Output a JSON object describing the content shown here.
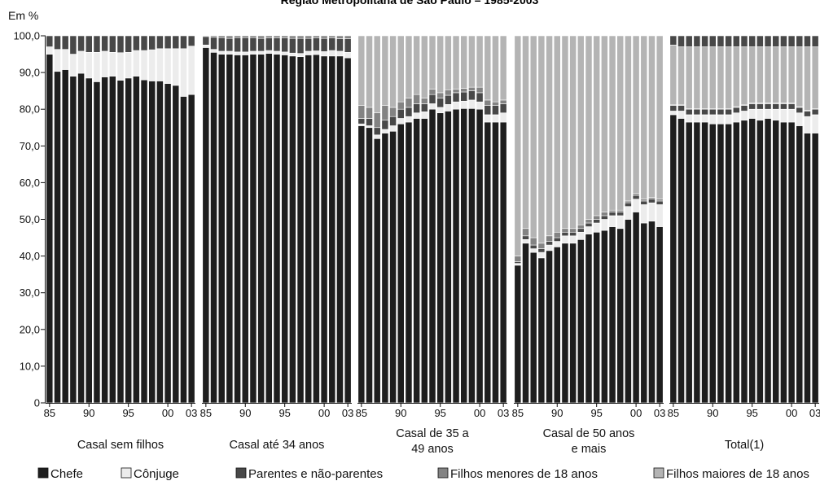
{
  "subtitle": "Região Metropolitana de São Paulo – 1985-2003",
  "colors": {
    "chefe": "#1e1e1e",
    "conjuge": "#ececec",
    "parentes": "#484848",
    "filhos_menores": "#838383",
    "filhos_maiores": "#b4b4b4",
    "border": "#ffffff"
  },
  "chart_data": {
    "type": "bar",
    "stacked": true,
    "ylabel": "Em %",
    "ylim": [
      0,
      100
    ],
    "yticks": [
      0,
      10,
      20,
      30,
      40,
      50,
      60,
      70,
      80,
      90,
      100
    ],
    "ytick_labels": [
      "0",
      "10,0",
      "20,0",
      "30,0",
      "40,0",
      "50,0",
      "60,0",
      "70,0",
      "80,0",
      "90,0",
      "100,0"
    ],
    "years": [
      1985,
      1986,
      1987,
      1988,
      1989,
      1990,
      1991,
      1992,
      1993,
      1994,
      1995,
      1996,
      1997,
      1998,
      1999,
      2000,
      2001,
      2002,
      2003
    ],
    "xtick_labels": [
      "85",
      "90",
      "95",
      "00",
      "03"
    ],
    "legend": [
      "Chefe",
      "Cônjuge",
      "Parentes e não-parentes",
      "Filhos menores de 18 anos",
      "Filhos maiores de 18 anos"
    ],
    "legend_position": "bottom",
    "panels": [
      {
        "title": [
          "Casal sem filhos"
        ],
        "chefe": [
          95.0,
          90.3,
          90.8,
          89.0,
          89.8,
          88.5,
          87.5,
          88.8,
          89.0,
          87.9,
          88.5,
          89.0,
          88.0,
          87.7,
          87.7,
          87.0,
          86.5,
          83.5,
          84.0
        ],
        "conjuge": [
          2.0,
          6.0,
          5.5,
          6.0,
          6.0,
          7.0,
          8.0,
          7.0,
          6.5,
          7.5,
          7.0,
          7.0,
          8.0,
          8.5,
          8.8,
          9.5,
          10.0,
          13.0,
          13.2
        ],
        "parentes": [
          3.0,
          3.7,
          3.7,
          5.0,
          4.2,
          4.5,
          4.5,
          4.2,
          4.5,
          4.6,
          4.5,
          4.0,
          4.0,
          3.8,
          3.5,
          3.5,
          3.5,
          3.5,
          2.8
        ],
        "filhos_menores": [
          0,
          0,
          0,
          0,
          0,
          0,
          0,
          0,
          0,
          0,
          0,
          0,
          0,
          0,
          0,
          0,
          0,
          0,
          0
        ],
        "filhos_maiores": [
          0,
          0,
          0,
          0,
          0,
          0,
          0,
          0,
          0,
          0,
          0,
          0,
          0,
          0,
          0,
          0,
          0,
          0,
          0
        ]
      },
      {
        "title": [
          "Casal até 34 anos"
        ],
        "chefe": [
          96.8,
          95.5,
          95.0,
          95.0,
          94.8,
          94.8,
          95.0,
          95.0,
          95.2,
          95.0,
          94.8,
          94.5,
          94.3,
          94.8,
          94.9,
          94.5,
          94.5,
          94.5,
          94.0
        ],
        "conjuge": [
          0.7,
          0.8,
          0.8,
          0.8,
          0.8,
          0.8,
          0.8,
          0.8,
          0.8,
          0.8,
          0.8,
          0.8,
          0.9,
          1.0,
          1.0,
          1.2,
          1.5,
          1.3,
          1.5
        ],
        "parentes": [
          2.3,
          3.3,
          3.7,
          3.5,
          3.9,
          3.9,
          3.7,
          3.5,
          3.4,
          3.6,
          3.8,
          4.0,
          4.1,
          3.5,
          3.5,
          3.6,
          3.4,
          3.4,
          3.7
        ],
        "filhos_menores": [
          0.2,
          0.4,
          0.5,
          0.7,
          0.5,
          0.5,
          0.5,
          0.7,
          0.6,
          0.6,
          0.6,
          0.7,
          0.7,
          0.7,
          0.6,
          0.7,
          0.6,
          0.8,
          0.8
        ],
        "filhos_maiores": [
          0,
          0,
          0,
          0,
          0,
          0,
          0,
          0,
          0,
          0,
          0,
          0,
          0,
          0,
          0,
          0,
          0,
          0,
          0
        ]
      },
      {
        "title": [
          "Casal de 35 a",
          "49 anos"
        ],
        "chefe": [
          75.5,
          75.0,
          72.0,
          73.5,
          74.0,
          76.0,
          76.5,
          77.5,
          77.5,
          80.0,
          79.0,
          79.5,
          80.0,
          80.2,
          80.2,
          80.0,
          76.5,
          76.5,
          76.5
        ],
        "conjuge": [
          0.5,
          0.5,
          1.0,
          1.0,
          1.5,
          1.5,
          1.5,
          1.5,
          1.8,
          1.5,
          1.5,
          1.8,
          2.0,
          2.0,
          2.3,
          2.0,
          2.0,
          2.0,
          2.5
        ],
        "parentes": [
          1.5,
          2.0,
          2.0,
          2.5,
          2.5,
          2.5,
          2.5,
          2.5,
          2.2,
          2.5,
          2.5,
          2.5,
          2.5,
          2.5,
          2.5,
          2.5,
          2.5,
          2.5,
          2.5
        ],
        "filhos_menores": [
          3.5,
          3.0,
          4.0,
          4.0,
          2.5,
          2.0,
          2.5,
          2.5,
          1.5,
          1.5,
          1.5,
          1.5,
          1.0,
          1.0,
          1.0,
          1.5,
          1.5,
          1.0,
          1.0
        ],
        "filhos_maiores": [
          19.0,
          19.5,
          21.0,
          19.0,
          19.5,
          18.0,
          17.0,
          16.0,
          17.0,
          14.5,
          15.5,
          14.7,
          14.5,
          14.3,
          14.0,
          14.0,
          17.5,
          18.0,
          17.5
        ]
      },
      {
        "title": [
          "Casal de 50 anos",
          "e mais"
        ],
        "chefe": [
          37.5,
          43.5,
          41.0,
          39.5,
          41.5,
          42.5,
          43.5,
          43.5,
          44.5,
          46.0,
          46.5,
          47.0,
          48.0,
          47.5,
          50.0,
          52.0,
          49.0,
          49.5,
          48.0
        ],
        "conjuge": [
          0.5,
          1.0,
          1.0,
          1.5,
          1.5,
          1.5,
          2.0,
          2.0,
          2.0,
          2.0,
          2.5,
          3.0,
          3.0,
          3.5,
          3.5,
          3.5,
          5.0,
          5.0,
          6.0
        ],
        "parentes": [
          0.5,
          1.0,
          1.0,
          1.0,
          1.0,
          1.0,
          1.0,
          1.0,
          1.0,
          1.0,
          1.0,
          1.0,
          1.0,
          1.0,
          1.0,
          1.0,
          1.0,
          1.0,
          1.0
        ],
        "filhos_menores": [
          1.5,
          2.0,
          2.0,
          1.5,
          1.5,
          1.5,
          1.0,
          1.0,
          1.0,
          1.0,
          1.0,
          1.0,
          0.5,
          0.5,
          0.5,
          0.5,
          0.5,
          0.5,
          0.5
        ],
        "filhos_maiores": [
          60.0,
          52.5,
          55.0,
          56.5,
          54.5,
          53.5,
          52.5,
          52.5,
          51.5,
          50.0,
          49.0,
          48.0,
          47.5,
          47.5,
          45.0,
          43.0,
          44.5,
          44.0,
          44.5
        ]
      },
      {
        "title": [
          "Total(1)"
        ],
        "chefe": [
          78.5,
          77.5,
          76.5,
          76.5,
          76.5,
          76.0,
          76.0,
          76.0,
          76.5,
          77.0,
          77.5,
          77.0,
          77.5,
          77.0,
          76.5,
          76.5,
          75.5,
          73.5,
          73.5
        ],
        "conjuge": [
          1.0,
          2.0,
          2.0,
          2.0,
          2.0,
          2.5,
          2.5,
          2.5,
          2.5,
          2.5,
          2.5,
          3.0,
          2.5,
          3.0,
          3.5,
          3.5,
          3.5,
          4.5,
          5.0
        ],
        "parentes": [
          1.5,
          1.5,
          1.5,
          1.5,
          1.5,
          1.5,
          1.5,
          1.5,
          1.5,
          1.5,
          1.5,
          1.5,
          1.5,
          1.5,
          1.5,
          1.5,
          1.5,
          1.5,
          1.5
        ],
        "filhos_menores": [
          0.2,
          0.2,
          0.2,
          0.2,
          0.2,
          0.2,
          0.2,
          0.2,
          0.2,
          0.2,
          0.2,
          0.2,
          0.2,
          0.2,
          0.2,
          0.2,
          0.2,
          0.2,
          0.2
        ],
        "filhos_maiores": [
          16.3,
          15.8,
          16.8,
          16.8,
          16.8,
          16.8,
          16.8,
          16.8,
          16.3,
          15.8,
          15.3,
          15.3,
          15.3,
          15.3,
          15.3,
          15.3,
          16.3,
          17.3,
          16.8
        ]
      }
    ]
  }
}
